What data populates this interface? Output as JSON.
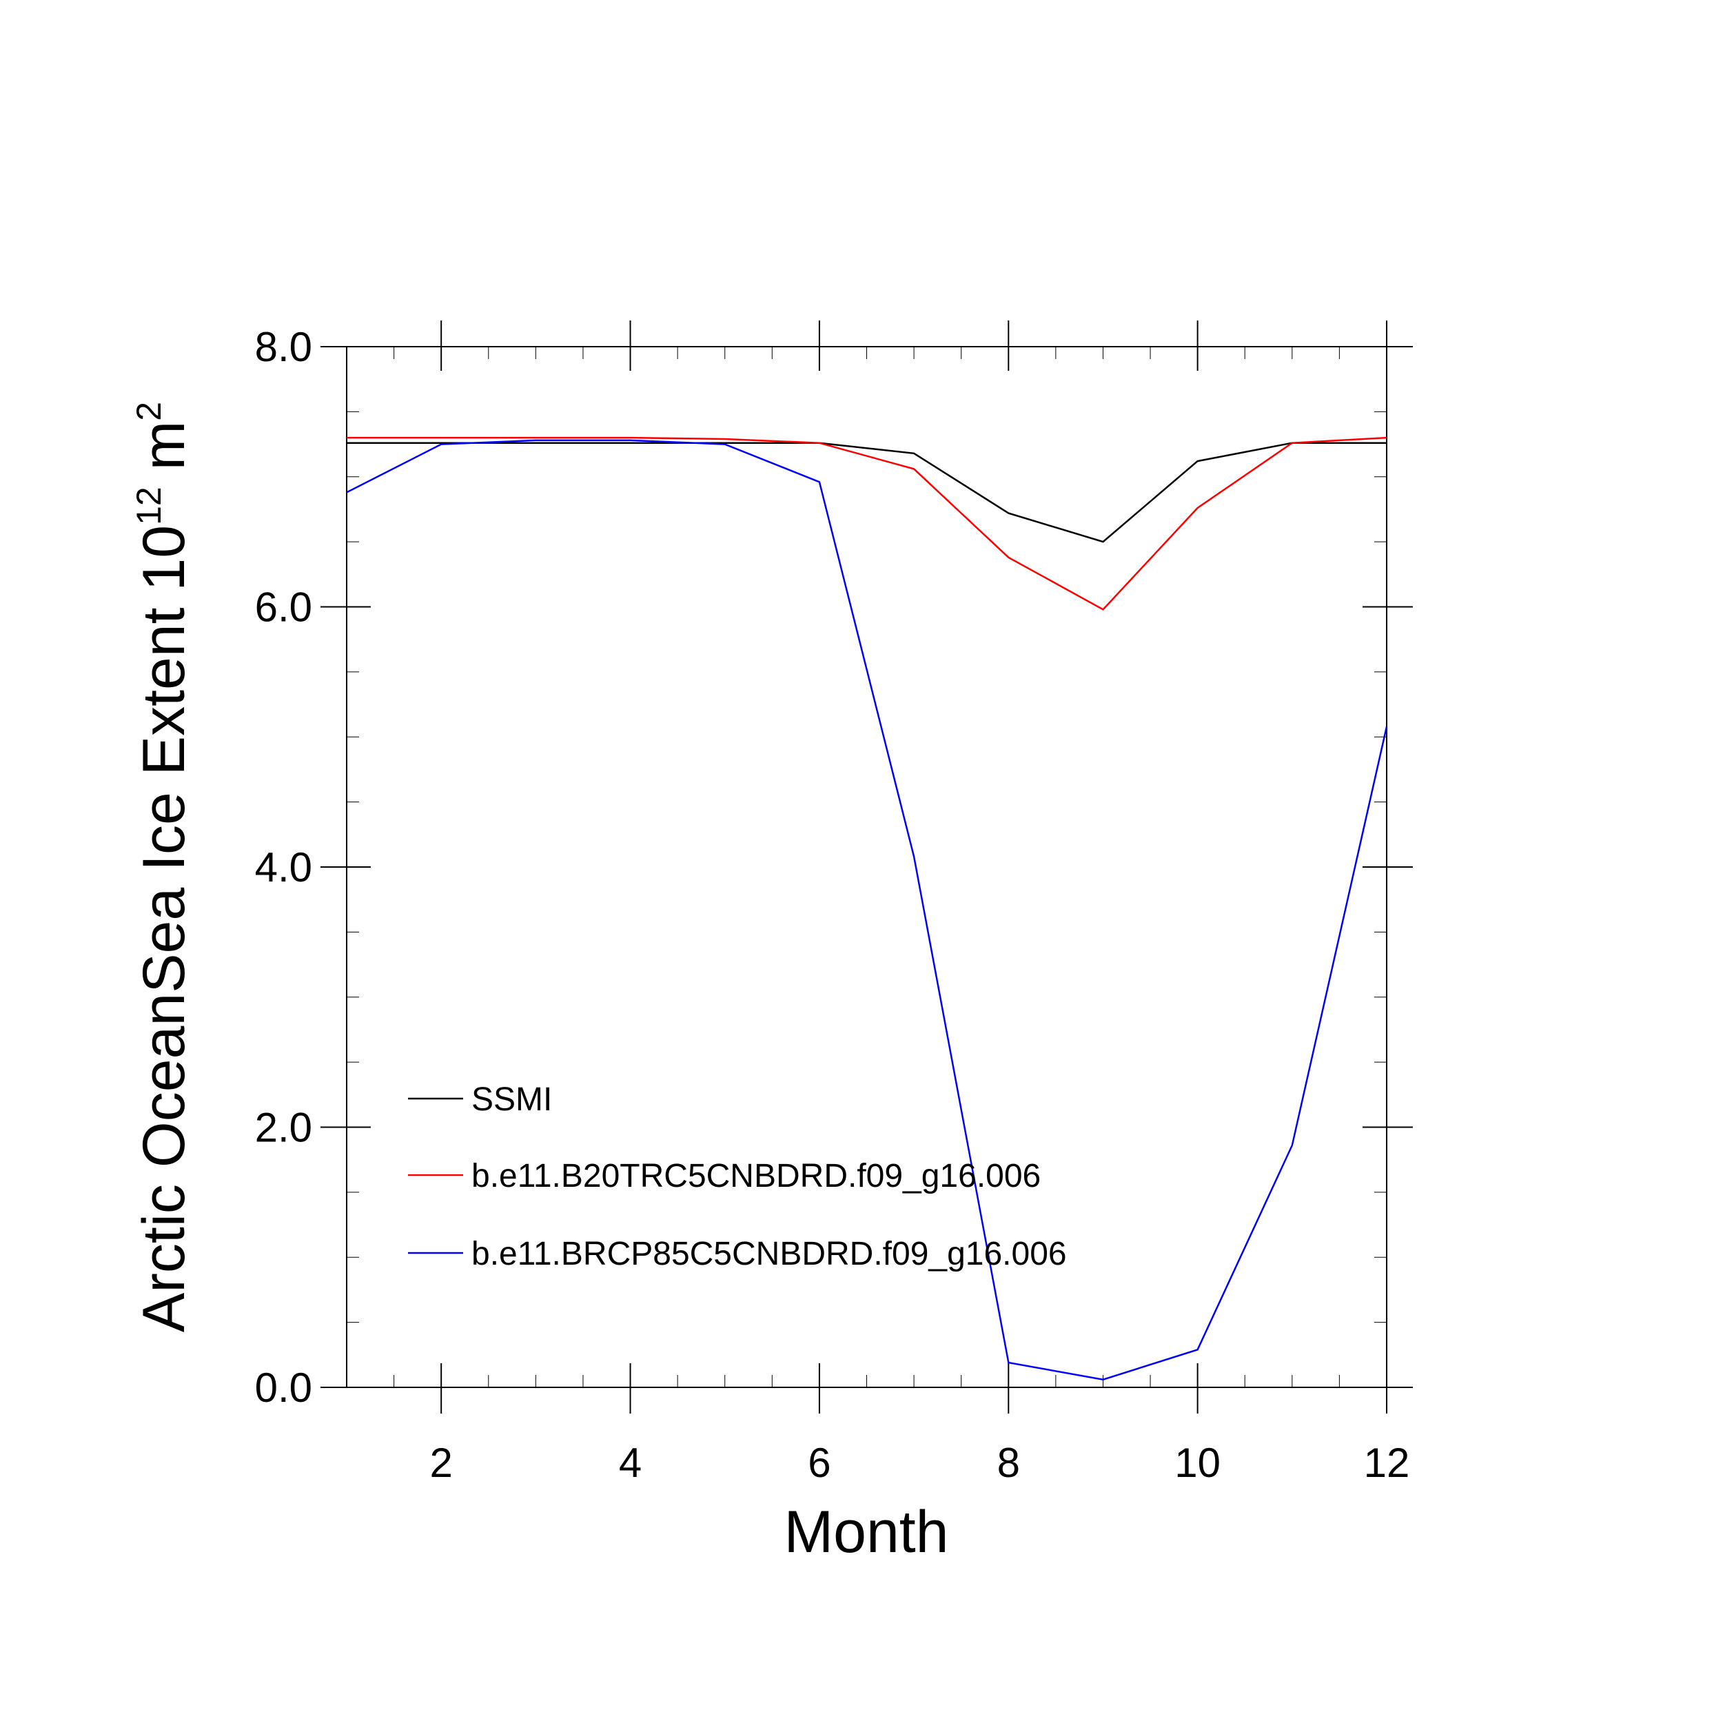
{
  "chart_data": {
    "type": "line",
    "title": "",
    "xlabel": "Month",
    "ylabel_main": "Arctic OceanSea Ice Extent 10",
    "ylabel_exp1": "12",
    "ylabel_unit": " m",
    "ylabel_exp2": "2",
    "xlim": [
      1,
      12
    ],
    "ylim": [
      0,
      8
    ],
    "x_ticks": [
      2,
      4,
      6,
      8,
      10,
      12
    ],
    "x_tick_labels": [
      "2",
      "4",
      "6",
      "8",
      "10",
      "12"
    ],
    "y_ticks": [
      0,
      2,
      4,
      6,
      8
    ],
    "y_tick_labels": [
      "0.0",
      "2.0",
      "4.0",
      "6.0",
      "8.0"
    ],
    "grid": false,
    "legend_placement": "lower-left",
    "x": [
      1,
      2,
      3,
      4,
      5,
      6,
      7,
      8,
      9,
      10,
      11,
      12
    ],
    "series": [
      {
        "name": "SSMI",
        "color": "#000000",
        "values": [
          7.26,
          7.26,
          7.26,
          7.26,
          7.26,
          7.26,
          7.18,
          6.72,
          6.5,
          7.12,
          7.26,
          7.26
        ]
      },
      {
        "name": "b.e11.B20TRC5CNBDRD.f09_g16.006",
        "color": "#ff0000",
        "values": [
          7.3,
          7.3,
          7.3,
          7.3,
          7.29,
          7.26,
          7.06,
          6.38,
          5.98,
          6.76,
          7.26,
          7.3
        ]
      },
      {
        "name": "b.e11.BRCP85C5CNBDRD.f09_g16.006",
        "color": "#0000ff",
        "values": [
          6.88,
          7.25,
          7.28,
          7.28,
          7.25,
          6.96,
          4.08,
          0.19,
          0.06,
          0.29,
          1.86,
          5.08
        ]
      }
    ]
  }
}
